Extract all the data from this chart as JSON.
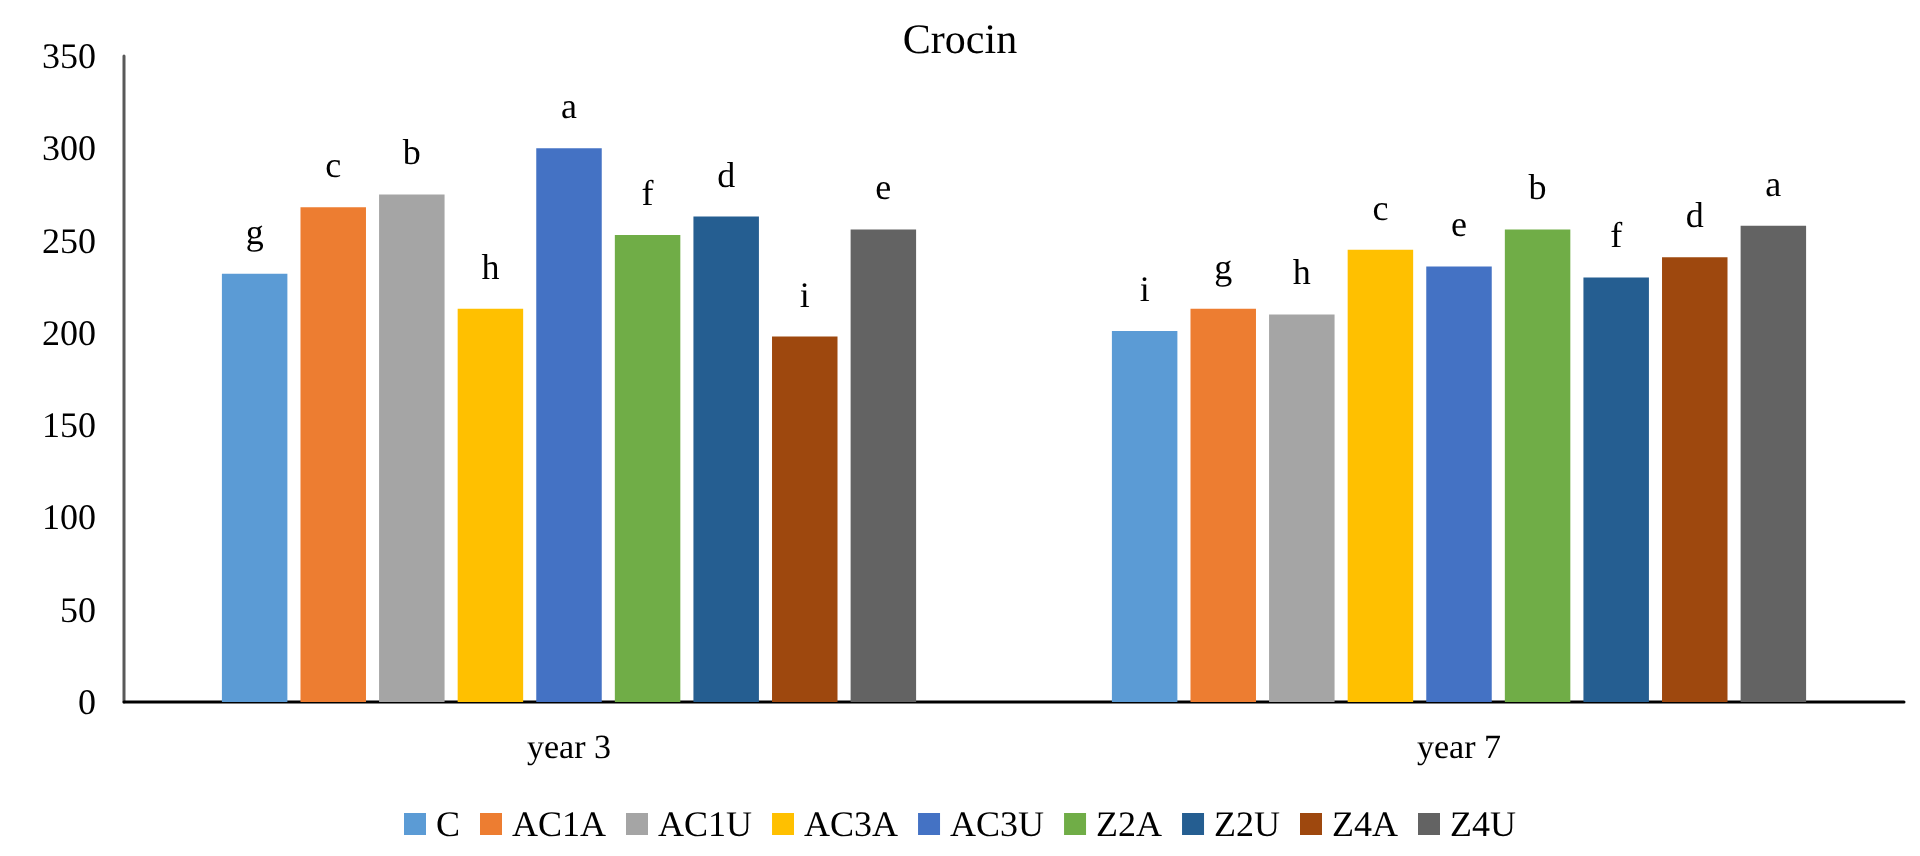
{
  "chart_data": {
    "type": "bar",
    "title": "Crocin",
    "categories": [
      "year 3",
      "year 7"
    ],
    "series": [
      {
        "name": "C",
        "color": "#5b9bd5",
        "values": [
          232,
          201
        ],
        "value_labels": [
          "g",
          "i"
        ]
      },
      {
        "name": "AC1A",
        "color": "#ed7d31",
        "values": [
          268,
          213
        ],
        "value_labels": [
          "c",
          "g"
        ]
      },
      {
        "name": "AC1U",
        "color": "#a5a5a5",
        "values": [
          275,
          210
        ],
        "value_labels": [
          "b",
          "h"
        ]
      },
      {
        "name": "AC3A",
        "color": "#ffc000",
        "values": [
          213,
          245
        ],
        "value_labels": [
          "h",
          "c"
        ]
      },
      {
        "name": "AC3U",
        "color": "#4472c4",
        "values": [
          300,
          236
        ],
        "value_labels": [
          "a",
          "e"
        ]
      },
      {
        "name": "Z2A",
        "color": "#70ad47",
        "values": [
          253,
          256
        ],
        "value_labels": [
          "f",
          "b"
        ]
      },
      {
        "name": "Z2U",
        "color": "#255e91",
        "values": [
          263,
          230
        ],
        "value_labels": [
          "d",
          "f"
        ]
      },
      {
        "name": "Z4A",
        "color": "#9e480e",
        "values": [
          198,
          241
        ],
        "value_labels": [
          "i",
          "d"
        ]
      },
      {
        "name": "Z4U",
        "color": "#636363",
        "values": [
          256,
          258
        ],
        "value_labels": [
          "e",
          "a"
        ]
      }
    ],
    "ylim": [
      0,
      350
    ],
    "yticks": [
      0,
      50,
      100,
      150,
      200,
      250,
      300,
      350
    ],
    "grid": false,
    "legend": "bottom"
  }
}
